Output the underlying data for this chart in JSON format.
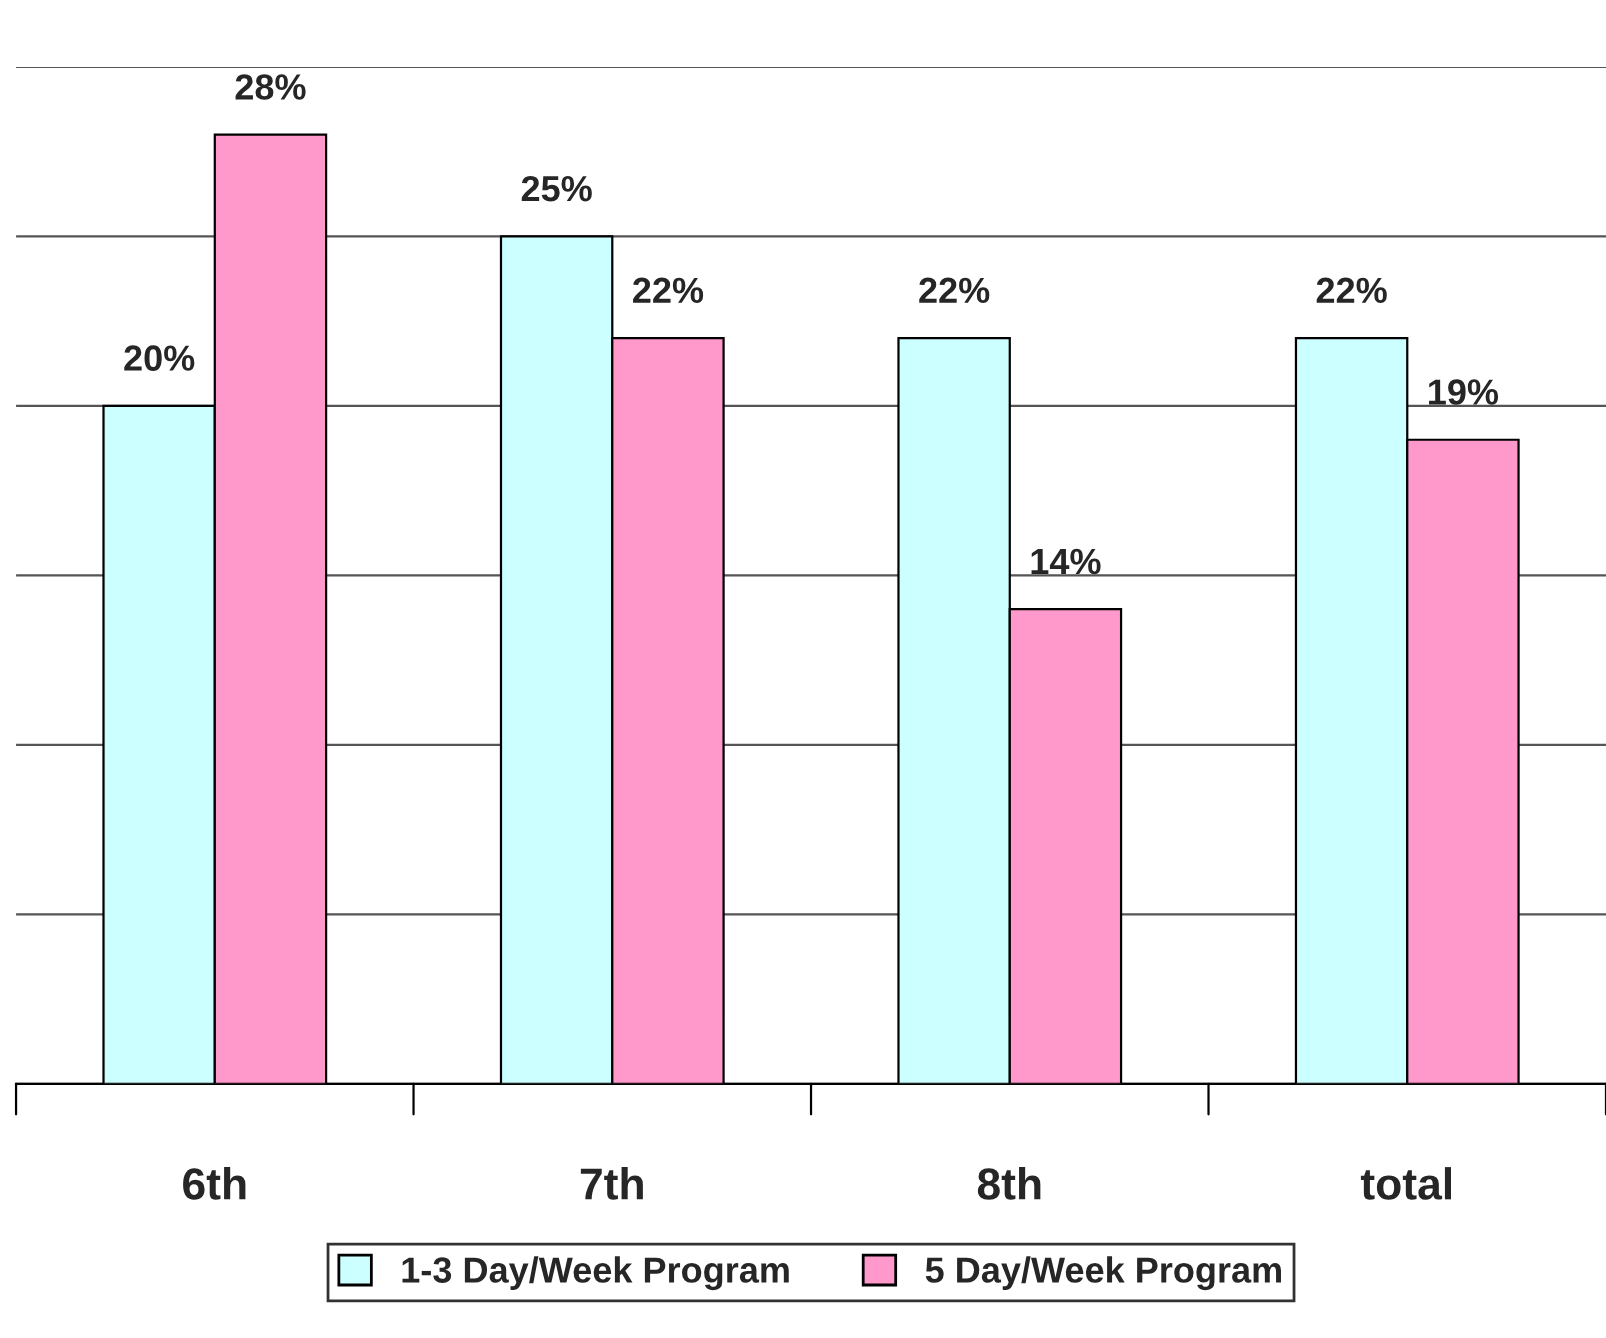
{
  "chart_data": {
    "type": "bar",
    "categories": [
      "6th",
      "7th",
      "8th",
      "total"
    ],
    "series": [
      {
        "name": "1-3 Day/Week Program",
        "color": "#ccffff",
        "values": [
          20,
          25,
          22,
          22
        ],
        "value_labels": [
          "20%",
          "25%",
          "22%",
          "22%"
        ]
      },
      {
        "name": "5 Day/Week Program",
        "color": "#ff99cc",
        "values": [
          28,
          22,
          14,
          19
        ],
        "value_labels": [
          "28%",
          "22%",
          "14%",
          "19%"
        ]
      }
    ],
    "ylim": [
      0,
      30
    ],
    "yticks": [
      {
        "value": 0,
        "label": null
      },
      {
        "value": 5,
        "label": null
      },
      {
        "value": 10,
        "label": null
      },
      {
        "value": 15,
        "label": null
      },
      {
        "value": 20,
        "label": null
      },
      {
        "value": 25,
        "label": null
      },
      {
        "value": 30,
        "label": null
      }
    ],
    "tick_labels": "x",
    "grid": "y",
    "legend": "bottom"
  }
}
